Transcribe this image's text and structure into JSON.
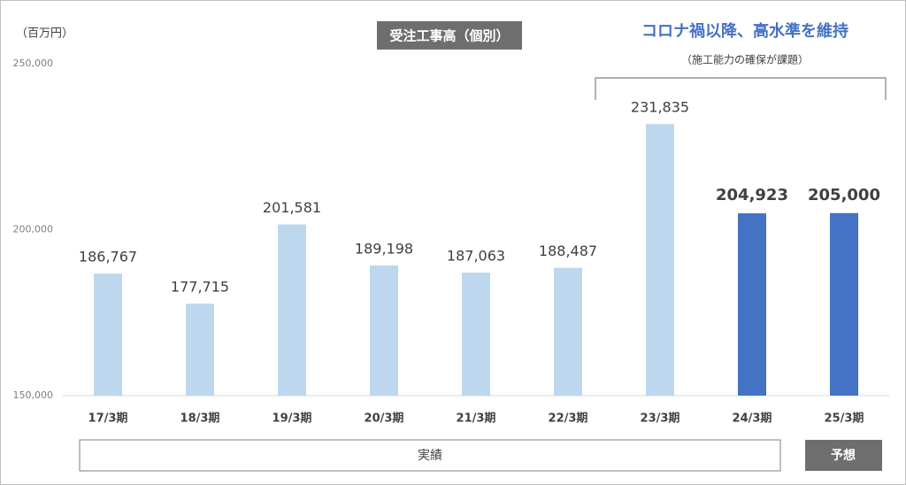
{
  "chart_data": {
    "type": "bar",
    "title": "受注工事高（個別）",
    "unit_label": "（百万円）",
    "annotation": "コロナ禍以降、高水準を維持",
    "annotation_note": "（施工能力の確保が課題）",
    "group_labels": [
      "実績",
      "予想"
    ],
    "categories": [
      "17/3期",
      "18/3期",
      "19/3期",
      "20/3期",
      "21/3期",
      "22/3期",
      "23/3期",
      "24/3期",
      "25/3期"
    ],
    "values": [
      186767,
      177715,
      201581,
      189198,
      187063,
      188487,
      231835,
      204923,
      205000
    ],
    "value_labels": [
      "186,767",
      "177,715",
      "201,581",
      "189,198",
      "187,063",
      "188,487",
      "231,835",
      "204,923",
      "205,000"
    ],
    "colors": [
      "#bdd7ee",
      "#bdd7ee",
      "#bdd7ee",
      "#bdd7ee",
      "#bdd7ee",
      "#bdd7ee",
      "#bdd7ee",
      "#4472c4",
      "#4472c4"
    ],
    "ylim": [
      150000,
      250000
    ],
    "yticks": [
      {
        "value": 150000,
        "label": "150,000"
      },
      {
        "value": 200000,
        "label": "200,000"
      },
      {
        "value": 250000,
        "label": "250,000"
      }
    ],
    "grid": false
  }
}
